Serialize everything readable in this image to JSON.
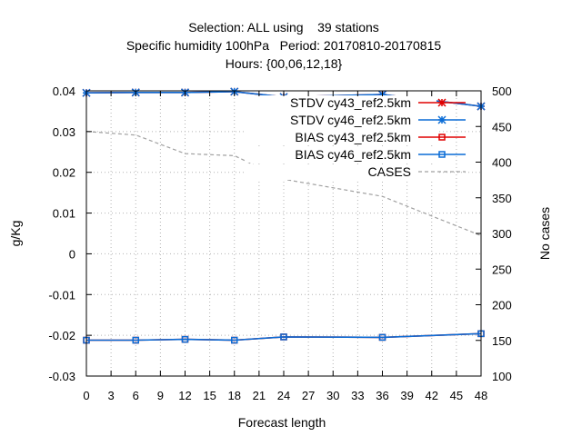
{
  "chart_data": {
    "type": "line",
    "title_lines": [
      "Selection: ALL using    39 stations",
      "Specific humidity 100hPa   Period: 20170810-20170815",
      "Hours: {00,06,12,18}"
    ],
    "xlabel": "Forecast length",
    "ylabel": "g/Kg",
    "y2label": "No cases",
    "xlim": [
      0,
      48
    ],
    "ylim": [
      -0.03,
      0.04
    ],
    "y2lim": [
      100,
      500
    ],
    "xticks": [
      "0",
      "3",
      "6",
      "9",
      "12",
      "15",
      "18",
      "21",
      "24",
      "27",
      "30",
      "33",
      "36",
      "39",
      "42",
      "45",
      "48"
    ],
    "yticks": [
      "-0.03",
      "-0.02",
      "-0.01",
      "0",
      "0.01",
      "0.02",
      "0.03",
      "0.04"
    ],
    "y2ticks": [
      "100",
      "150",
      "200",
      "250",
      "300",
      "350",
      "400",
      "450",
      "500"
    ],
    "grid": true,
    "legend_position": "top-right",
    "x": [
      0,
      6,
      12,
      18,
      24,
      36,
      48
    ],
    "series": [
      {
        "name": "STDV cy43_ref2.5km",
        "axis": "y",
        "color": "#e00000",
        "marker": "star",
        "dash": "",
        "values": [
          0.0395,
          0.0396,
          0.0396,
          0.0398,
          0.0385,
          0.0391,
          0.0362
        ]
      },
      {
        "name": "STDV cy46_ref2.5km",
        "axis": "y",
        "color": "#0a6cd6",
        "marker": "star",
        "dash": "",
        "values": [
          0.0395,
          0.0396,
          0.0396,
          0.0398,
          0.0385,
          0.0391,
          0.0362
        ]
      },
      {
        "name": "BIAS cy43_ref2.5km",
        "axis": "y",
        "color": "#e00000",
        "marker": "square",
        "dash": "",
        "values": [
          -0.0212,
          -0.0212,
          -0.021,
          -0.0212,
          -0.0204,
          -0.0205,
          -0.0196
        ]
      },
      {
        "name": "BIAS cy46_ref2.5km",
        "axis": "y",
        "color": "#0a6cd6",
        "marker": "square",
        "dash": "",
        "values": [
          -0.0212,
          -0.0212,
          -0.021,
          -0.0212,
          -0.0204,
          -0.0205,
          -0.0196
        ]
      },
      {
        "name": "CASES",
        "axis": "y2",
        "color": "#a0a0a0",
        "marker": "none",
        "dash": "4,3",
        "values": [
          443,
          438,
          412,
          409,
          376,
          352,
          297
        ]
      }
    ]
  }
}
